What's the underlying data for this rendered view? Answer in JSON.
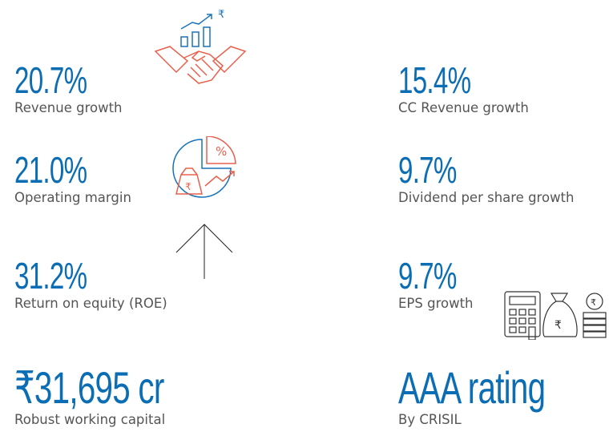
{
  "metrics": [
    {
      "value": "20.7%",
      "label": "Revenue growth"
    },
    {
      "value": "15.4%",
      "label": "CC Revenue growth"
    },
    {
      "value": "21.0%",
      "label": "Operating margin"
    },
    {
      "value": "9.7%",
      "label": "Dividend per share growth"
    },
    {
      "value": "31.2%",
      "label": "Return on equity (ROE)"
    },
    {
      "value": "9.7%",
      "label": "EPS growth"
    },
    {
      "value": "₹31,695 cr",
      "label": "Robust working capital"
    },
    {
      "value": "AAA rating",
      "label": "By CRISIL"
    }
  ],
  "icons": {
    "growth": "₹",
    "pie": [
      "%",
      "₹"
    ],
    "calculator": [
      "₹",
      "₹"
    ]
  }
}
